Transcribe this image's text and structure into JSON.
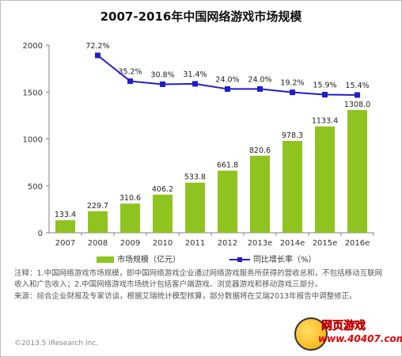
{
  "chart_data": {
    "type": "bar",
    "title": "2007-2016年中国网络游戏市场规模",
    "categories": [
      "2007",
      "2008",
      "2009",
      "2010",
      "2011",
      "2012",
      "2013e",
      "2014e",
      "2015e",
      "2016e"
    ],
    "series": [
      {
        "name": "市场规模（亿元）",
        "type": "bar",
        "axis": "left",
        "values": [
          133.4,
          229.7,
          310.6,
          406.2,
          533.8,
          661.8,
          820.6,
          978.3,
          1133.4,
          1308.0
        ],
        "labels": [
          "133.4",
          "229.7",
          "310.6",
          "406.2",
          "533.8",
          "661.8",
          "820.6",
          "978.3",
          "1133.4",
          "1308.0"
        ]
      },
      {
        "name": "同比增长率（%）",
        "type": "line",
        "axis": "right",
        "values": [
          null,
          72.2,
          35.2,
          30.8,
          31.4,
          24.0,
          24.0,
          19.2,
          15.9,
          15.4
        ],
        "labels": [
          "",
          "72.2%",
          "35.2%",
          "30.8%",
          "31.4%",
          "24.0%",
          "24.0%",
          "19.2%",
          "15.9%",
          "15.4%"
        ]
      }
    ],
    "yticks": [
      "0",
      "500",
      "1000",
      "1500",
      "2000"
    ],
    "ylim": [
      0,
      2000
    ],
    "legend_position": "bottom",
    "colors": {
      "bar": "#8fc31f",
      "line": "#1f1fc8",
      "axis": "#808080"
    }
  },
  "notes": {
    "note": "注释：1.中国网络游戏市场规模，即中国网络游戏企业通过网络游戏服务所获得的营收总和，不包括移动互联网收入和广告收入；2.中国网络游戏市场统计包括客户端游戏、浏览器游戏和移动游戏三部分。",
    "source": "来源：综合企业财报及专家访谈，根据艾瑞统计模型核算，部分数据将在艾瑞2013年报告中调整修正。"
  },
  "copyright": "©2013.5 iResearch Inc.",
  "watermark": {
    "brand": "网页游戏",
    "site": "www.40407.com"
  }
}
